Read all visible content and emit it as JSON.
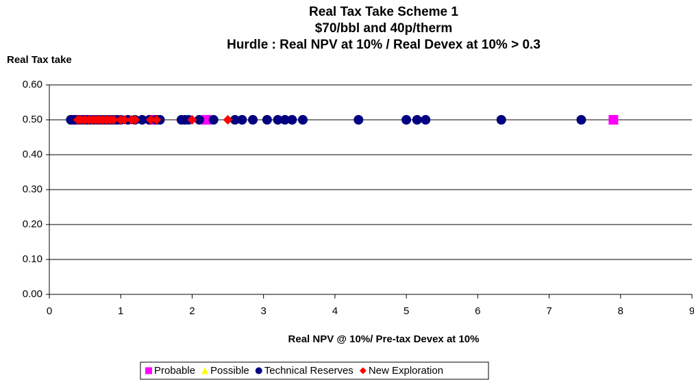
{
  "chart_data": {
    "type": "scatter",
    "title": [
      "Real Tax Take Scheme 1",
      "$70/bbl and 40p/therm",
      "Hurdle : Real NPV at 10% / Real Devex at 10% > 0.3"
    ],
    "y_label": "Real Tax take",
    "x_label": "Real NPV @ 10%/ Pre-tax Devex at 10%",
    "xlim": [
      0,
      9
    ],
    "xticks": [
      0,
      1,
      2,
      3,
      4,
      5,
      6,
      7,
      8,
      9
    ],
    "ylim": [
      0,
      0.6
    ],
    "yticks": [
      {
        "value": 0,
        "label": "0.00"
      },
      {
        "value": 0.1,
        "label": "0.10"
      },
      {
        "value": 0.2,
        "label": "0.20"
      },
      {
        "value": 0.3,
        "label": "0.30"
      },
      {
        "value": 0.4,
        "label": "0.40"
      },
      {
        "value": 0.5,
        "label": "0.50"
      },
      {
        "value": 0.6,
        "label": "0.60"
      }
    ],
    "grid": true,
    "legend": "bottom",
    "series": [
      {
        "name": "Probable",
        "color": "#ff00ff",
        "marker": "square",
        "x": [
          0.35,
          0.5,
          1.45,
          2.2,
          7.9
        ],
        "values": [
          0.5,
          0.5,
          0.5,
          0.5,
          0.5
        ]
      },
      {
        "name": "Possible",
        "color": "#ffff00",
        "marker": "triangle",
        "x": [
          0.45,
          0.6,
          0.75,
          0.9
        ],
        "values": [
          0.5,
          0.5,
          0.5,
          0.5
        ]
      },
      {
        "name": "Technical Reserves",
        "color": "#000080",
        "marker": "circle",
        "x": [
          0.3,
          0.35,
          0.4,
          0.45,
          0.5,
          0.55,
          0.6,
          0.65,
          0.7,
          0.75,
          0.8,
          0.85,
          0.9,
          0.95,
          1.0,
          1.1,
          1.2,
          1.3,
          1.4,
          1.5,
          1.55,
          1.85,
          1.9,
          1.95,
          2.1,
          2.3,
          2.6,
          2.7,
          2.85,
          3.05,
          3.2,
          3.3,
          3.4,
          3.55,
          4.33,
          5.0,
          5.15,
          5.27,
          6.33,
          7.45
        ],
        "values": [
          0.5,
          0.5,
          0.5,
          0.5,
          0.5,
          0.5,
          0.5,
          0.5,
          0.5,
          0.5,
          0.5,
          0.5,
          0.5,
          0.5,
          0.5,
          0.5,
          0.5,
          0.5,
          0.5,
          0.5,
          0.5,
          0.5,
          0.5,
          0.5,
          0.5,
          0.5,
          0.5,
          0.5,
          0.5,
          0.5,
          0.5,
          0.5,
          0.5,
          0.5,
          0.5,
          0.5,
          0.5,
          0.5,
          0.5,
          0.5
        ]
      },
      {
        "name": "New Exploration",
        "color": "#ff0000",
        "marker": "diamond",
        "x": [
          0.4,
          0.45,
          0.5,
          0.55,
          0.6,
          0.65,
          0.7,
          0.75,
          0.8,
          0.85,
          0.9,
          1.0,
          1.05,
          1.15,
          1.2,
          1.42,
          1.5,
          2.0,
          2.5
        ],
        "values": [
          0.5,
          0.5,
          0.5,
          0.5,
          0.5,
          0.5,
          0.5,
          0.5,
          0.5,
          0.5,
          0.5,
          0.5,
          0.5,
          0.5,
          0.5,
          0.5,
          0.5,
          0.5,
          0.5
        ]
      }
    ]
  }
}
